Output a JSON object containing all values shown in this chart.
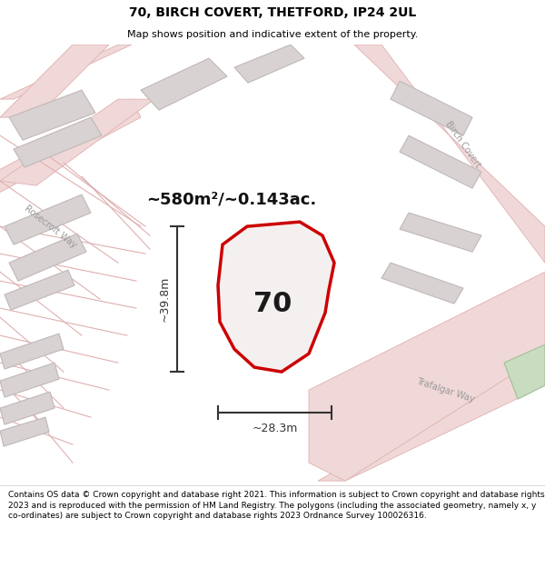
{
  "title": "70, BIRCH COVERT, THETFORD, IP24 2UL",
  "subtitle": "Map shows position and indicative extent of the property.",
  "footer": "Contains OS data © Crown copyright and database right 2021. This information is subject to Crown copyright and database rights 2023 and is reproduced with the permission of HM Land Registry. The polygons (including the associated geometry, namely x, y co-ordinates) are subject to Crown copyright and database rights 2023 Ordnance Survey 100026316.",
  "area_text": "~580m²/~0.143ac.",
  "label_70": "70",
  "dim_height": "~39.8m",
  "dim_width": "~28.3m",
  "map_bg": "#f5f0f0",
  "property_fill": "#f5f0f0",
  "property_edge": "#cc0000",
  "road_fill": "#f0d8d8",
  "road_edge": "#e0b0b0",
  "building_fill": "#d8d2d2",
  "building_edge": "#c0b8b8",
  "green_fill": "#c8ddc0",
  "green_edge": "#a0c098",
  "road_label_color": "#999999",
  "dim_color": "#333333",
  "text_color": "#111111"
}
